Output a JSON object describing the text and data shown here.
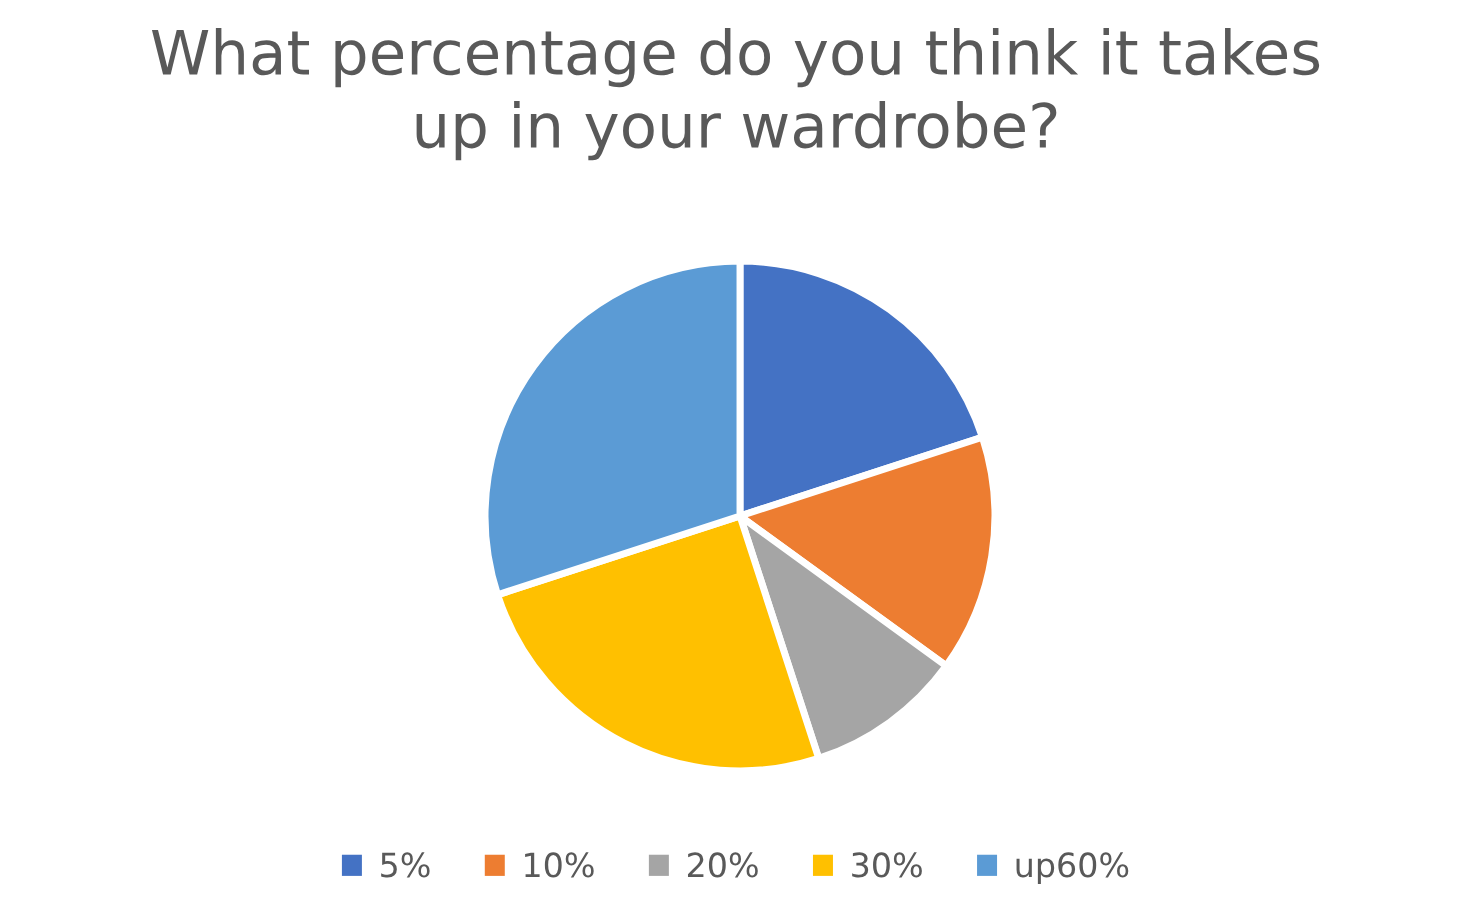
{
  "chart_data": {
    "type": "pie",
    "title": "What percentage do you think it takes up in your wardrobe?",
    "categories": [
      "5%",
      "10%",
      "20%",
      "30%",
      "up60%"
    ],
    "values": [
      20,
      15,
      10,
      25,
      30
    ],
    "colors": [
      "#4472c4",
      "#ed7d31",
      "#a5a5a5",
      "#ffc000",
      "#5b9bd5"
    ],
    "legend": "bottom"
  }
}
